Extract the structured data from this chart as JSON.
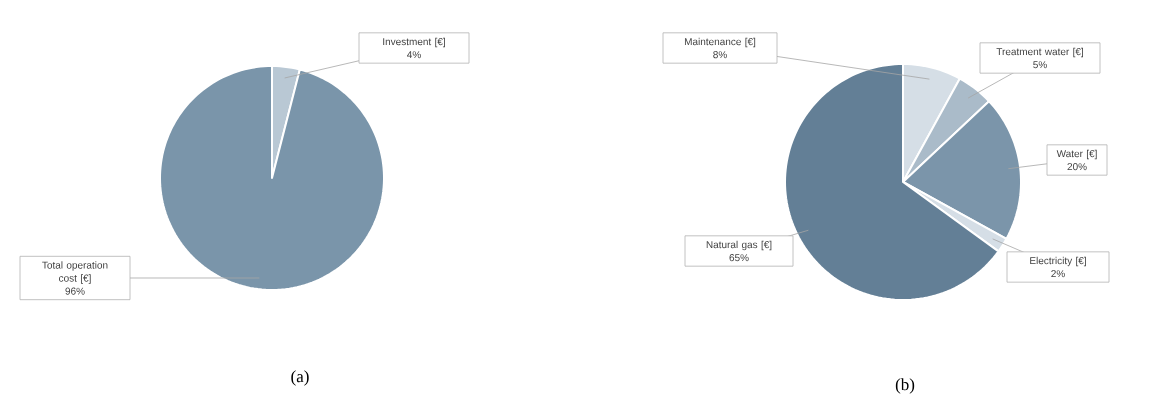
{
  "chart_data": [
    {
      "type": "pie",
      "title": "(a)",
      "categories": [
        "Investment [€]",
        "Total operation cost [€]"
      ],
      "values": [
        4,
        96
      ],
      "colors": [
        "#b9c8d4",
        "#7a95aa"
      ],
      "value_labels": [
        "4%",
        "96%"
      ]
    },
    {
      "type": "pie",
      "title": "(b)",
      "categories": [
        "Maintenance [€]",
        "Treatment water [€]",
        "Water [€]",
        "Electricity [€]",
        "Natural gas [€]"
      ],
      "values": [
        8,
        5,
        20,
        2,
        65
      ],
      "colors": [
        "#d5dee6",
        "#aabbc9",
        "#7b95aa",
        "#d5dee6",
        "#637f96"
      ],
      "value_labels": [
        "8%",
        "5%",
        "20%",
        "2%",
        "65%"
      ]
    }
  ]
}
